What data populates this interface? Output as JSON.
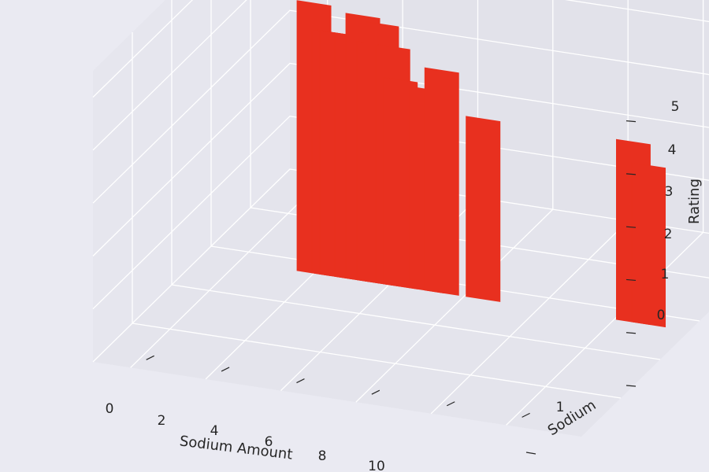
{
  "chart_data": {
    "type": "bar",
    "title": "",
    "xlabel": "Sodium Amount",
    "ylabel": "Sodium",
    "zlabel": "Rating",
    "x_ticks": [
      "0",
      "2",
      "4",
      "6",
      "8",
      "10"
    ],
    "y_ticks": [
      "1"
    ],
    "z_ticks": [
      "0",
      "1",
      "2",
      "3",
      "4",
      "5"
    ],
    "xlim": [
      -1,
      12
    ],
    "zlim": [
      0,
      5.5
    ],
    "bar_color": "#e8301f",
    "background": "#eaeaf2",
    "pane_color": "#e2e2ea",
    "grid": true,
    "bars": [
      {
        "x": 2.0,
        "rating": 5.1
      },
      {
        "x": 2.4,
        "rating": 4.6
      },
      {
        "x": 2.6,
        "rating": 4.6
      },
      {
        "x": 3.0,
        "rating": 4.6
      },
      {
        "x": 3.3,
        "rating": 5.0
      },
      {
        "x": 3.6,
        "rating": 4.5
      },
      {
        "x": 3.8,
        "rating": 4.9
      },
      {
        "x": 4.1,
        "rating": 4.5
      },
      {
        "x": 4.3,
        "rating": 3.9
      },
      {
        "x": 5.0,
        "rating": 3.8
      },
      {
        "x": 5.4,
        "rating": 4.2
      },
      {
        "x": 6.5,
        "rating": 3.4
      },
      {
        "x": 10.5,
        "rating": 3.4
      },
      {
        "x": 10.9,
        "rating": 3.0
      }
    ]
  }
}
